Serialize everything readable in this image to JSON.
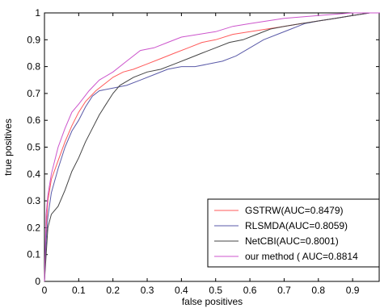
{
  "chart_data": {
    "type": "line",
    "xlabel": "false positives",
    "ylabel": "true positives",
    "xlim": [
      0,
      0.98
    ],
    "ylim": [
      0,
      1
    ],
    "x_ticks": [
      "0",
      "0.1",
      "0.2",
      "0.3",
      "0.4",
      "0.5",
      "0.6",
      "0.7",
      "0.8",
      "0.9"
    ],
    "y_ticks": [
      "0",
      "0.1",
      "0.2",
      "0.3",
      "0.4",
      "0.5",
      "0.6",
      "0.7",
      "0.8",
      "0.9",
      "1"
    ],
    "grid": false,
    "legend_position": "bottom-right",
    "series": [
      {
        "name": "GSTRW(AUC=0.8479)",
        "color": "#ff5a5a",
        "points": [
          [
            0,
            0
          ],
          [
            0.005,
            0.2
          ],
          [
            0.01,
            0.3
          ],
          [
            0.02,
            0.38
          ],
          [
            0.04,
            0.45
          ],
          [
            0.06,
            0.52
          ],
          [
            0.08,
            0.58
          ],
          [
            0.1,
            0.63
          ],
          [
            0.12,
            0.67
          ],
          [
            0.15,
            0.71
          ],
          [
            0.18,
            0.74
          ],
          [
            0.2,
            0.76
          ],
          [
            0.23,
            0.78
          ],
          [
            0.26,
            0.79
          ],
          [
            0.3,
            0.81
          ],
          [
            0.34,
            0.83
          ],
          [
            0.38,
            0.85
          ],
          [
            0.42,
            0.87
          ],
          [
            0.46,
            0.89
          ],
          [
            0.5,
            0.9
          ],
          [
            0.55,
            0.92
          ],
          [
            0.6,
            0.93
          ],
          [
            0.65,
            0.94
          ],
          [
            0.7,
            0.95
          ],
          [
            0.75,
            0.96
          ],
          [
            0.8,
            0.97
          ],
          [
            0.85,
            0.98
          ],
          [
            0.9,
            0.99
          ],
          [
            0.95,
            1.0
          ],
          [
            0.98,
            1.0
          ]
        ]
      },
      {
        "name": "RLSMDA(AUC=0.8059)",
        "color": "#5a5aa8",
        "points": [
          [
            0,
            0
          ],
          [
            0.005,
            0.15
          ],
          [
            0.01,
            0.24
          ],
          [
            0.02,
            0.33
          ],
          [
            0.04,
            0.42
          ],
          [
            0.06,
            0.5
          ],
          [
            0.08,
            0.56
          ],
          [
            0.1,
            0.6
          ],
          [
            0.12,
            0.65
          ],
          [
            0.14,
            0.69
          ],
          [
            0.16,
            0.71
          ],
          [
            0.2,
            0.72
          ],
          [
            0.24,
            0.73
          ],
          [
            0.28,
            0.75
          ],
          [
            0.32,
            0.77
          ],
          [
            0.36,
            0.79
          ],
          [
            0.4,
            0.8
          ],
          [
            0.44,
            0.8
          ],
          [
            0.48,
            0.81
          ],
          [
            0.52,
            0.82
          ],
          [
            0.56,
            0.84
          ],
          [
            0.6,
            0.87
          ],
          [
            0.64,
            0.9
          ],
          [
            0.68,
            0.92
          ],
          [
            0.72,
            0.94
          ],
          [
            0.76,
            0.96
          ],
          [
            0.8,
            0.97
          ],
          [
            0.85,
            0.98
          ],
          [
            0.9,
            0.99
          ],
          [
            0.95,
            1.0
          ],
          [
            0.98,
            1.0
          ]
        ]
      },
      {
        "name": "NetCBI(AUC=0.8001)",
        "color": "#444444",
        "points": [
          [
            0,
            0
          ],
          [
            0.005,
            0.1
          ],
          [
            0.01,
            0.2
          ],
          [
            0.02,
            0.25
          ],
          [
            0.04,
            0.28
          ],
          [
            0.06,
            0.34
          ],
          [
            0.08,
            0.41
          ],
          [
            0.1,
            0.46
          ],
          [
            0.12,
            0.52
          ],
          [
            0.14,
            0.57
          ],
          [
            0.16,
            0.62
          ],
          [
            0.18,
            0.66
          ],
          [
            0.2,
            0.7
          ],
          [
            0.22,
            0.73
          ],
          [
            0.26,
            0.76
          ],
          [
            0.3,
            0.78
          ],
          [
            0.34,
            0.79
          ],
          [
            0.38,
            0.81
          ],
          [
            0.42,
            0.83
          ],
          [
            0.46,
            0.85
          ],
          [
            0.5,
            0.87
          ],
          [
            0.54,
            0.89
          ],
          [
            0.58,
            0.9
          ],
          [
            0.62,
            0.92
          ],
          [
            0.66,
            0.94
          ],
          [
            0.7,
            0.95
          ],
          [
            0.75,
            0.96
          ],
          [
            0.8,
            0.97
          ],
          [
            0.85,
            0.98
          ],
          [
            0.9,
            0.99
          ],
          [
            0.95,
            1.0
          ],
          [
            0.98,
            1.0
          ]
        ]
      },
      {
        "name": "our method (  AUC=0.8814",
        "color": "#cc55cc",
        "points": [
          [
            0,
            0
          ],
          [
            0.005,
            0.25
          ],
          [
            0.01,
            0.32
          ],
          [
            0.02,
            0.4
          ],
          [
            0.04,
            0.5
          ],
          [
            0.06,
            0.57
          ],
          [
            0.08,
            0.63
          ],
          [
            0.1,
            0.66
          ],
          [
            0.13,
            0.71
          ],
          [
            0.16,
            0.75
          ],
          [
            0.2,
            0.78
          ],
          [
            0.24,
            0.82
          ],
          [
            0.28,
            0.86
          ],
          [
            0.32,
            0.87
          ],
          [
            0.36,
            0.89
          ],
          [
            0.4,
            0.91
          ],
          [
            0.45,
            0.92
          ],
          [
            0.5,
            0.93
          ],
          [
            0.55,
            0.95
          ],
          [
            0.6,
            0.96
          ],
          [
            0.65,
            0.97
          ],
          [
            0.7,
            0.98
          ],
          [
            0.8,
            0.99
          ],
          [
            0.9,
            1.0
          ],
          [
            0.98,
            1.0
          ]
        ]
      }
    ]
  }
}
